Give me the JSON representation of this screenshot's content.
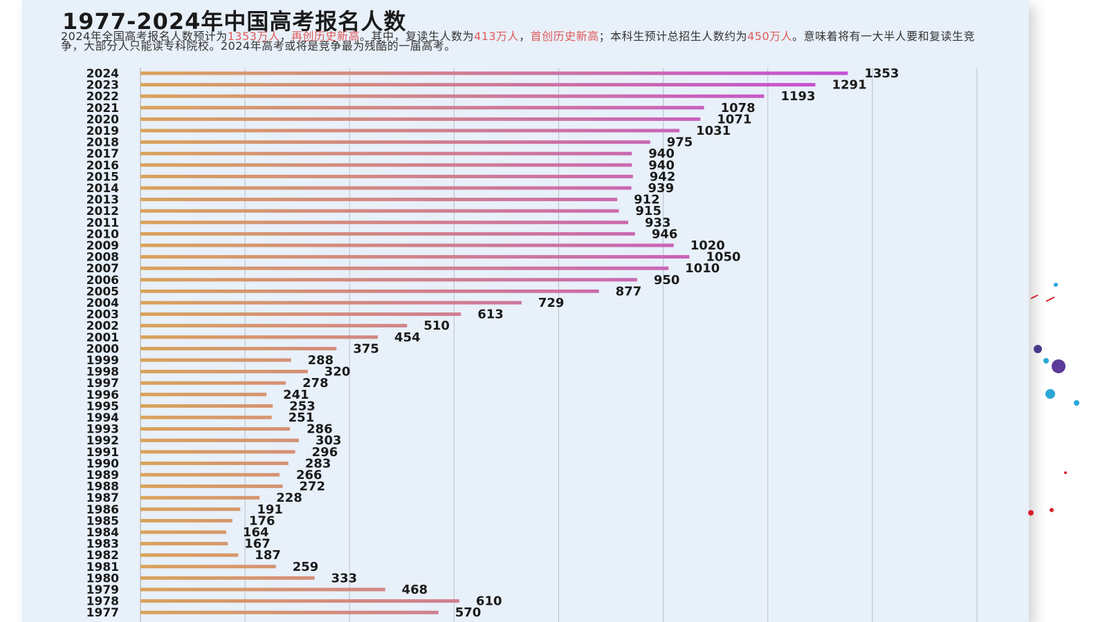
{
  "title": "1977-2024年中国高考报名人数",
  "description": {
    "p1": "2024年全国高考报名人数预计为",
    "h1": "1353万人",
    "p2": "，",
    "h2": "再创历史新高",
    "p3": "。其中，复读生人数为",
    "h3": "413万人",
    "p4": "，",
    "h4": "首创历史新高",
    "p5": "；本科生预计总招生人数约为",
    "h5": "450万人",
    "p6": "。意味着将有一大半人要和复读生竞争，大部分人只能读专科院校。2024年高考或将是竞争最为残酷的一届高考。"
  },
  "colors": {
    "card_bg": "#e8f0f9",
    "highlight": "#e05a5a",
    "bar_start": "#d9a25a",
    "bar_end": "#c44fd6",
    "grid": "#b9c0c8"
  },
  "chart_data": {
    "type": "bar",
    "orientation": "horizontal",
    "title": "1977-2024年中国高考报名人数",
    "categories": [
      "2024",
      "2023",
      "2022",
      "2021",
      "2020",
      "2019",
      "2018",
      "2017",
      "2016",
      "2015",
      "2014",
      "2013",
      "2012",
      "2011",
      "2010",
      "2009",
      "2008",
      "2007",
      "2006",
      "2005",
      "2004",
      "2003",
      "2002",
      "2001",
      "2000",
      "1999",
      "1998",
      "1997",
      "1996",
      "1995",
      "1994",
      "1993",
      "1992",
      "1991",
      "1990",
      "1989",
      "1988",
      "1987",
      "1986",
      "1985",
      "1984",
      "1983",
      "1982",
      "1981",
      "1980",
      "1979",
      "1978",
      "1977"
    ],
    "values": [
      1353,
      1291,
      1193,
      1078,
      1071,
      1031,
      975,
      940,
      940,
      942,
      939,
      912,
      915,
      933,
      946,
      1020,
      1050,
      1010,
      950,
      877,
      729,
      613,
      510,
      454,
      375,
      288,
      320,
      278,
      241,
      253,
      251,
      286,
      303,
      296,
      283,
      266,
      272,
      228,
      191,
      176,
      164,
      167,
      187,
      259,
      333,
      468,
      610,
      570
    ],
    "xlim": [
      0,
      1600
    ],
    "gridlines": [
      200,
      400,
      600,
      800,
      1000,
      1200,
      1400,
      1600
    ],
    "grid": true,
    "legend": "none"
  }
}
